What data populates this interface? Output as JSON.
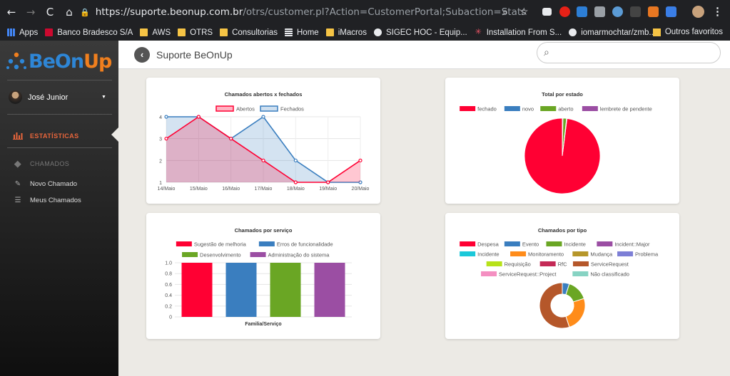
{
  "browser": {
    "url_host": "https://suporte.beonup.com.br",
    "url_path": "/otrs/customer.pl?Action=CustomerPortal;Subaction=Stats",
    "bookmarks": [
      "Apps",
      "Banco Bradesco S/A",
      "AWS",
      "OTRS",
      "Consultorias",
      "Home",
      "iMacros",
      "SIGEC HOC - Equip...",
      "Installation From S...",
      "iomarmochtar/zmb..."
    ],
    "other_bookmarks": "Outros favoritos"
  },
  "sidebar": {
    "user": "José Junior",
    "stats_label": "ESTATÍSTICAS",
    "tickets_label": "CHAMADOS",
    "new_ticket": "Novo Chamado",
    "my_tickets": "Meus Chamados"
  },
  "header": {
    "title": "Suporte BeOnUp",
    "search_placeholder": ""
  },
  "colors": {
    "red": "#ff0033",
    "blue": "#3a7ebf",
    "green": "#6aa624",
    "purple": "#9b4ea3",
    "cyan": "#1bc8d9",
    "orange": "#ff8c1a",
    "olive": "#b6962a",
    "lavender": "#7d7fd6",
    "lime": "#b7e21a",
    "crimson": "#c42a56",
    "brown": "#b5572a",
    "pink": "#f48fc1",
    "teal": "#87d3c3"
  },
  "charts": [
    {
      "type": "area",
      "title": "Chamados abertos x fechados",
      "categories": [
        "14/Maio",
        "15/Maio",
        "16/Maio",
        "17/Maio",
        "18/Maio",
        "19/Maio",
        "20/Maio"
      ],
      "yticks": [
        "1",
        "2",
        "3",
        "4"
      ],
      "ylim": [
        1,
        4
      ],
      "series": [
        {
          "name": "Abertos",
          "values": [
            3,
            4,
            3,
            2,
            1,
            1,
            2
          ]
        },
        {
          "name": "Fechados",
          "values": [
            4,
            4,
            3,
            4,
            2,
            1,
            1
          ]
        }
      ]
    },
    {
      "type": "pie",
      "title": "Total por estado",
      "labels": [
        "fechado",
        "novo",
        "aberto",
        "lembrete de pendente"
      ],
      "values": [
        98,
        0.3,
        1.5,
        0.2
      ]
    },
    {
      "type": "bar",
      "title": "Chamados por serviço",
      "legend": [
        "Sugestão de melhoria",
        "Erros de funcionalidade",
        "Desenvolvimento",
        "Administração do sistema"
      ],
      "values": [
        1,
        1,
        1,
        1
      ],
      "yticks": [
        "0",
        "0.2",
        "0.4",
        "0.6",
        "0.8",
        "1.0"
      ],
      "ylim": [
        0,
        1
      ],
      "xlabel": "Familia/Serviço"
    },
    {
      "type": "doughnut",
      "title": "Chamados por tipo",
      "labels": [
        "Despesa",
        "Evento",
        "Incidente",
        "Incident::Major",
        "Incidente",
        "Monitoramento",
        "Mudança",
        "Problema",
        "Requisição",
        "RfC",
        "ServiceRequest",
        "ServiceRequest::Project",
        "Não classificado"
      ],
      "values": [
        0,
        5,
        15,
        0,
        0,
        25,
        0,
        0,
        0,
        0,
        55,
        0,
        0
      ]
    }
  ]
}
